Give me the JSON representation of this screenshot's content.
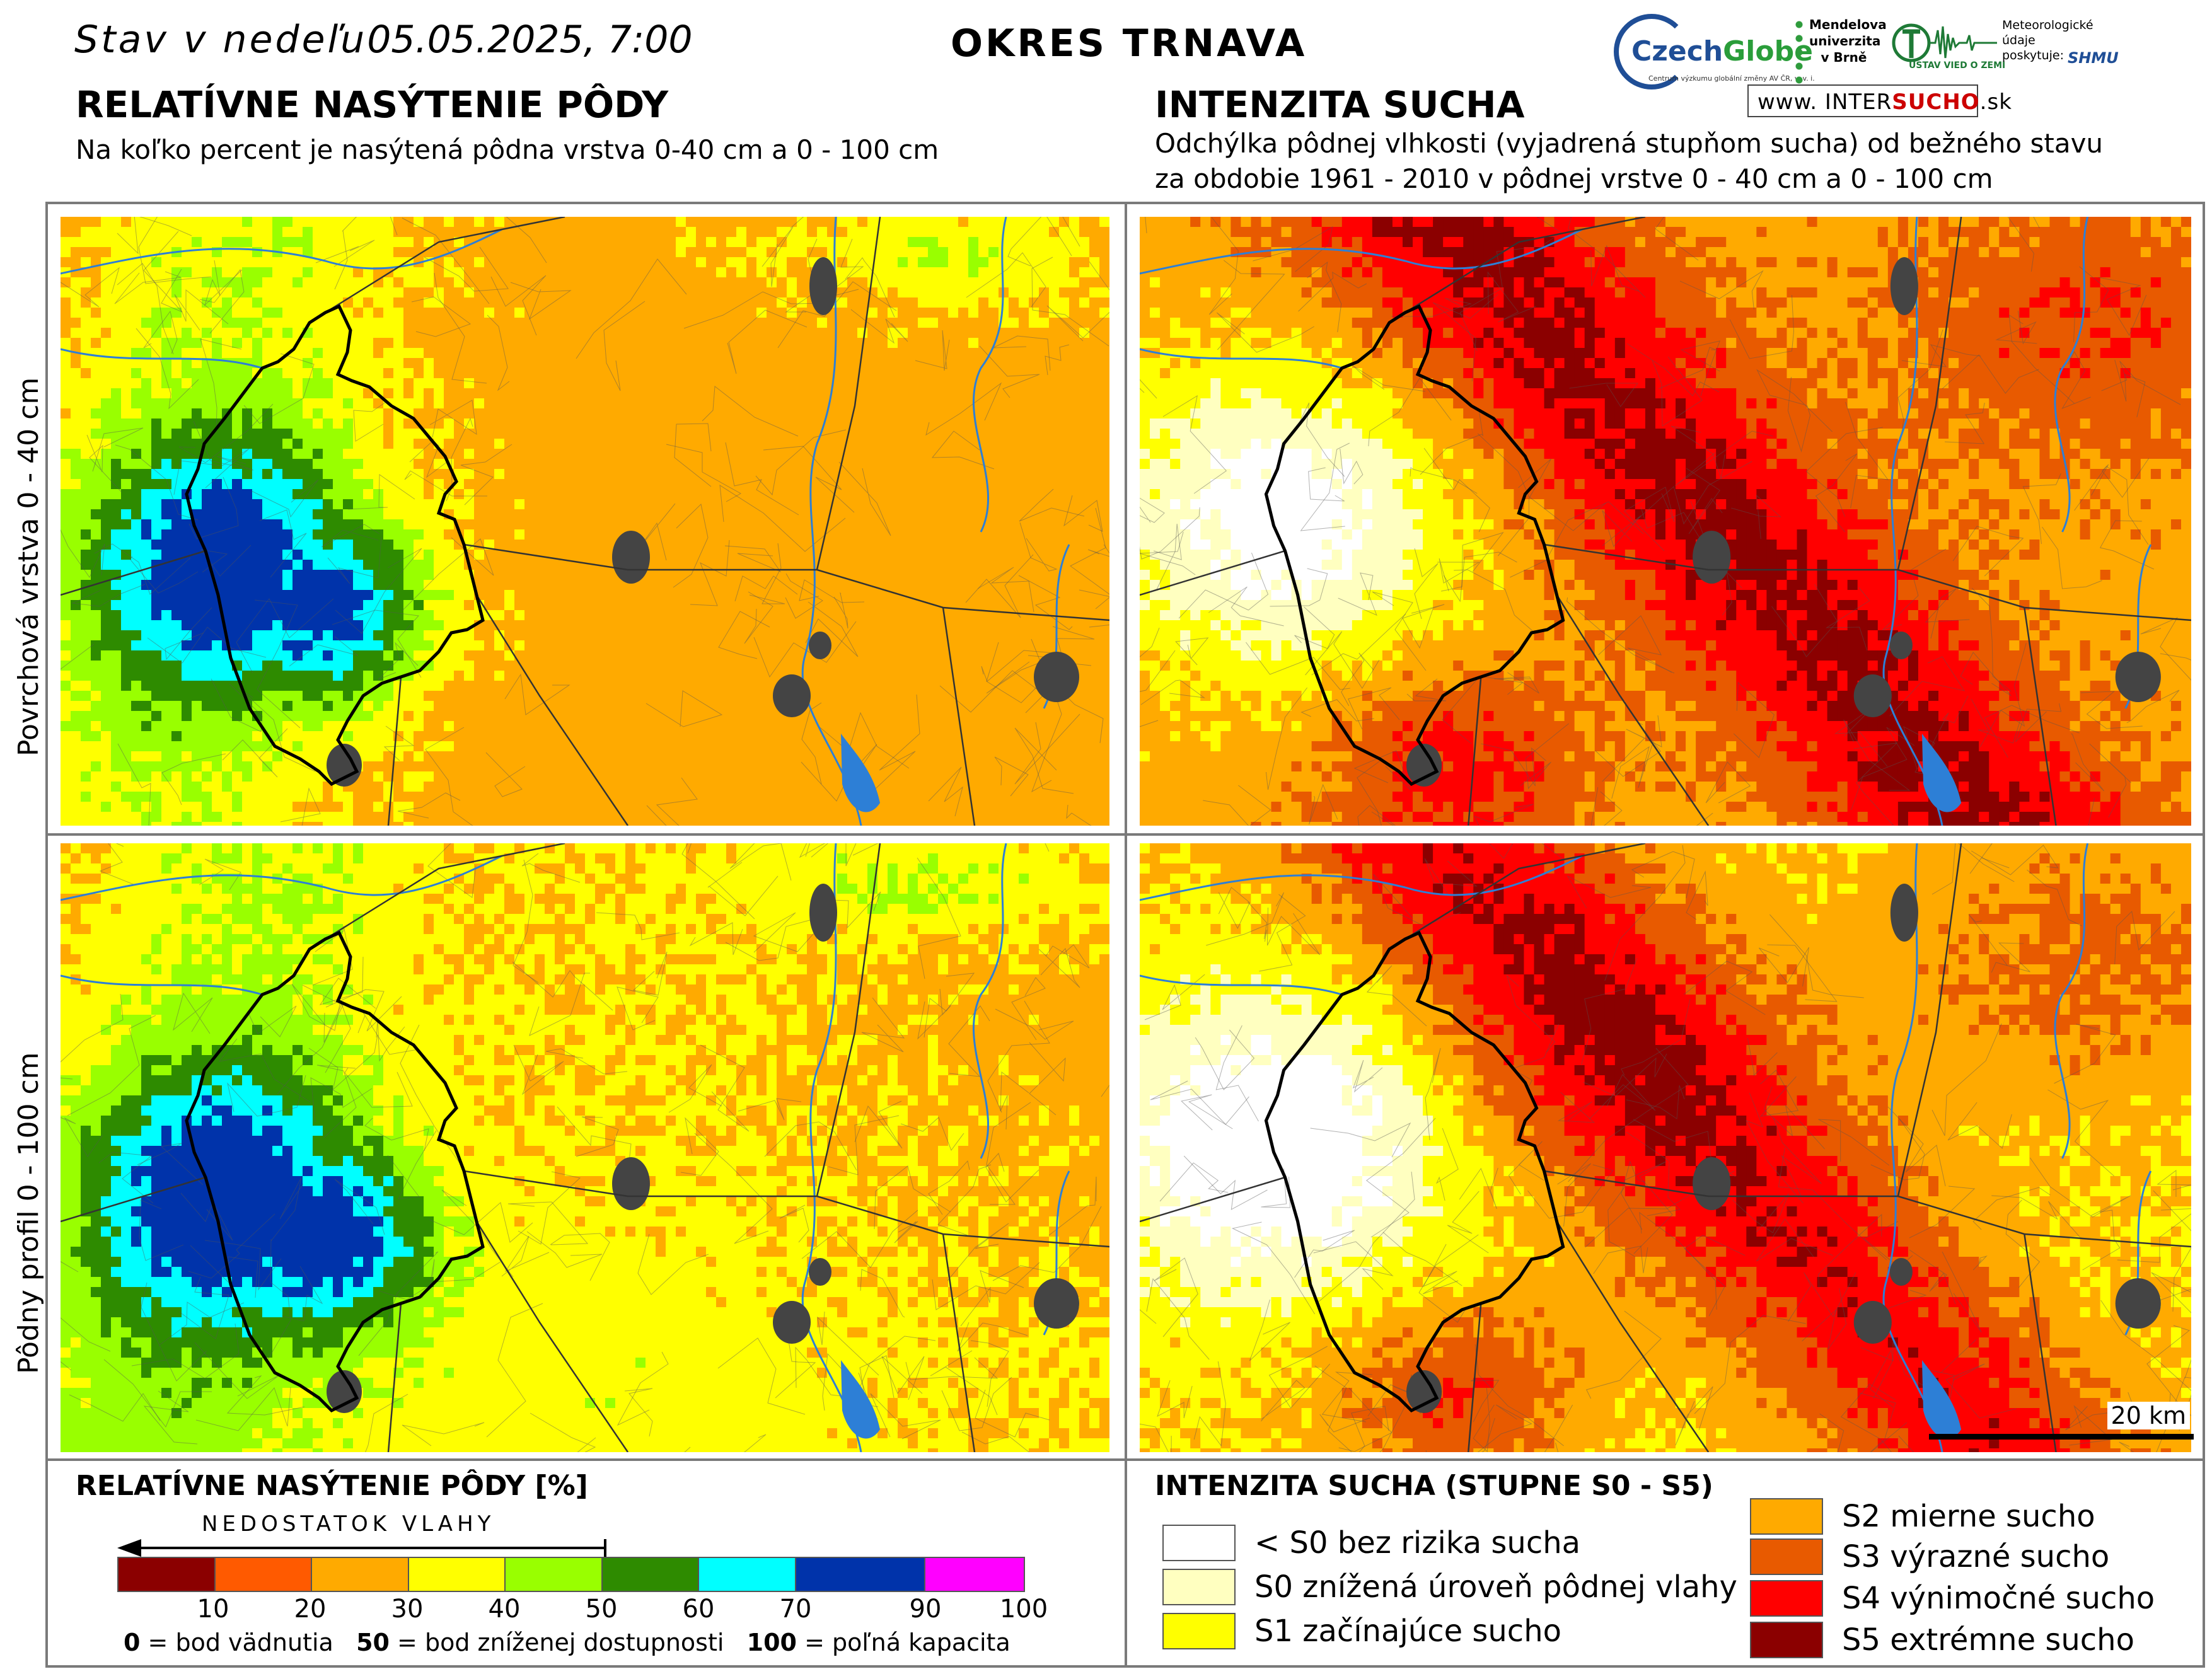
{
  "header": {
    "date_prefix": "Stav v nedeľu",
    "date_value": "05.05.2025, 7:00",
    "region": "OKRES TRNAVA"
  },
  "left_section": {
    "title": "RELATÍVNE NASÝTENIE PÔDY",
    "subtitle": "Na koľko percent je nasýtená pôdna vrstva 0-40 cm a 0 - 100 cm"
  },
  "right_section": {
    "title": "INTENZITA SUCHA",
    "subtitle_line1": "Odchýlka pôdnej vlhkosti (vyjadrená stupňom sucha) od bežného stavu",
    "subtitle_line2": "za obdobie 1961 - 2010 v pôdnej vrstve 0 - 40 cm a 0 - 100 cm"
  },
  "logos": {
    "czechglobe_name_a": "Czech",
    "czechglobe_name_b": "Globe",
    "czechglobe_tagline": "Centrum výzkumu globální změny AV ČR, v. v. i.",
    "mendel_line1": "Mendelova",
    "mendel_line2": "univerzita",
    "mendel_line3": "v Brně",
    "uvz": "ÚSTAV VIED O ZEMI",
    "meteo_line1": "Meteorologické",
    "meteo_line2": "údaje",
    "meteo_line3": "poskytuje:",
    "shmu": "SHMU",
    "intersucho_prefix": "www.",
    "intersucho_a": "INTER",
    "intersucho_b": "SUCHO",
    "intersucho_suffix": ".sk"
  },
  "rows": {
    "top": "Povrchová vrstva 0 - 40 cm",
    "bottom": "Pôdny profil 0 - 100 cm"
  },
  "legend_saturation": {
    "title": "RELATÍVNE NASÝTENIE PÔDY [%]",
    "arrow_label": "NEDOSTATOK VLAHY",
    "colors": [
      "#8b0000",
      "#ff5a00",
      "#ffaa00",
      "#ffff00",
      "#99ff00",
      "#2e8b00",
      "#00ffff",
      "#0033aa",
      "#ff00ff"
    ],
    "ticks": [
      "10",
      "20",
      "30",
      "40",
      "50",
      "60",
      "70",
      "90",
      "100"
    ],
    "note_0_value": "0",
    "note_0_text": " = bod vädnutia",
    "note_50_value": "50",
    "note_50_text": " = bod zníženej dostupnosti",
    "note_100_value": "100",
    "note_100_text": " = poľná kapacita"
  },
  "legend_drought": {
    "title": "INTENZITA SUCHA (STUPNE S0 - S5)",
    "items": [
      {
        "label": "< S0 bez rizika sucha",
        "color": "#ffffff"
      },
      {
        "label": "S0 znížená úroveň pôdnej vlahy",
        "color": "#ffffc0"
      },
      {
        "label": "S1 začínajúce sucho",
        "color": "#ffff00"
      },
      {
        "label": "S2 mierne sucho",
        "color": "#ffaa00"
      },
      {
        "label": "S3 výrazné sucho",
        "color": "#e85a00"
      },
      {
        "label": "S4 výnimočné sucho",
        "color": "#ff0000"
      },
      {
        "label": "S5 extrémne sucho",
        "color": "#8b0000"
      }
    ]
  },
  "scale": {
    "label": "20 km"
  }
}
